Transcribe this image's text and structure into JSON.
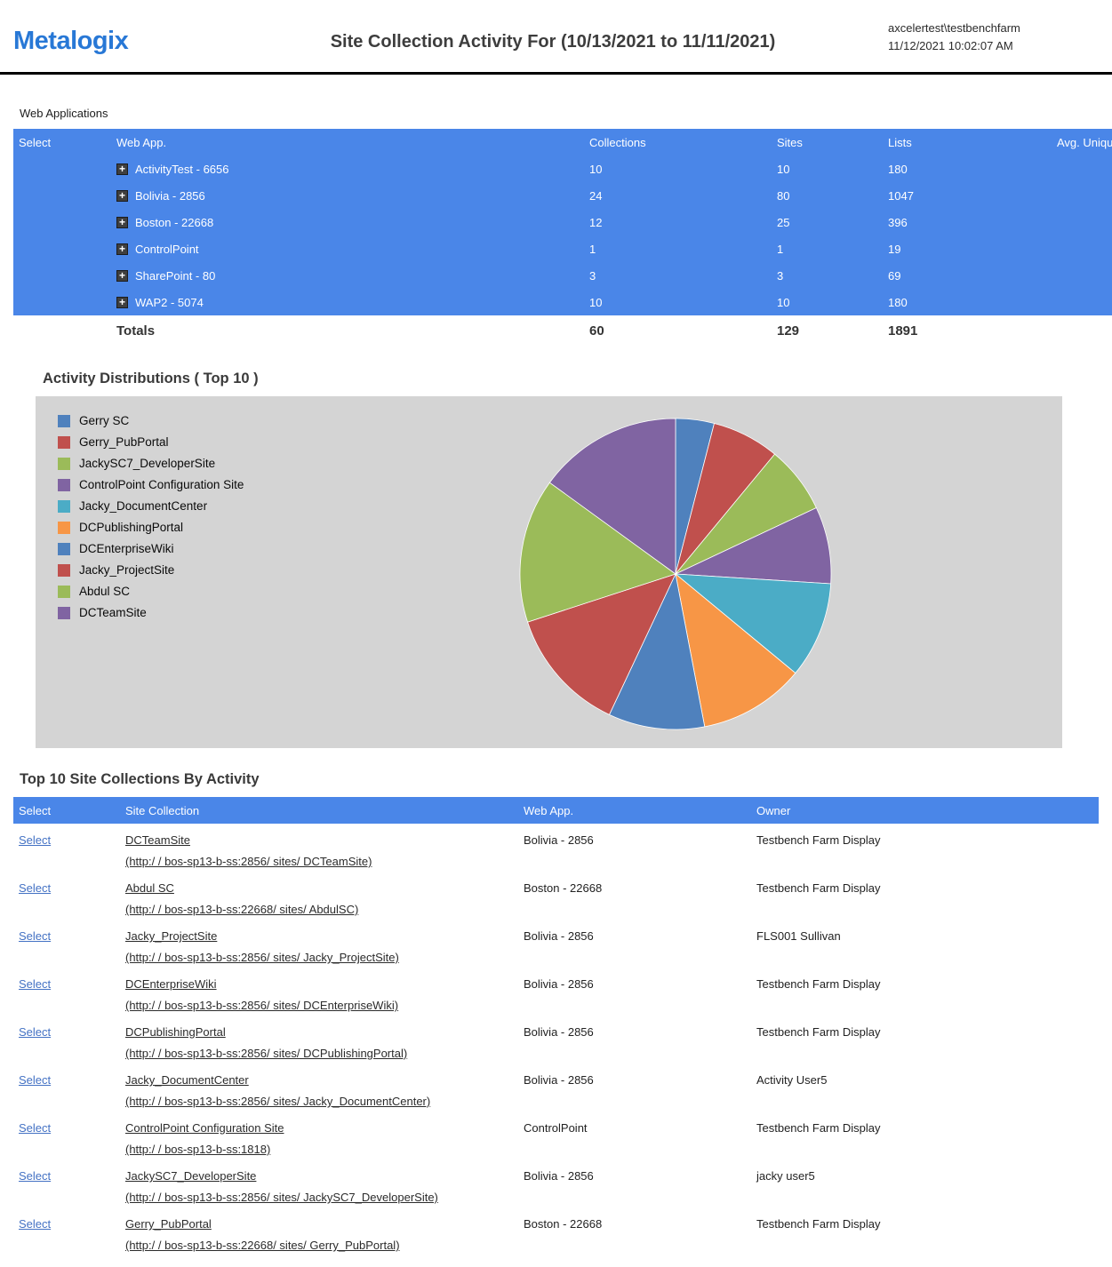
{
  "header": {
    "logo": "Metalogix",
    "title": "Site Collection Activity For (10/13/2021 to 11/11/2021)",
    "user": "axcelertest\\testbenchfarm",
    "timestamp": "11/12/2021 10:02:07 AM"
  },
  "theme": {
    "table_header_blue": "#4a86e8",
    "chart_panel_background": "#d4d4d4",
    "logo_blue": "#2878d6"
  },
  "web_applications": {
    "section_label": "Web Applications",
    "columns": [
      "Select",
      "Web App.",
      "Collections",
      "Sites",
      "Lists",
      "Avg. Unique"
    ],
    "expand_icon": "+",
    "rows": [
      {
        "name": "ActivityTest - 6656",
        "collections": "10",
        "sites": "10",
        "lists": "180"
      },
      {
        "name": "Bolivia - 2856",
        "collections": "24",
        "sites": "80",
        "lists": "1047"
      },
      {
        "name": "Boston - 22668",
        "collections": "12",
        "sites": "25",
        "lists": "396"
      },
      {
        "name": "ControlPoint",
        "collections": "1",
        "sites": "1",
        "lists": "19"
      },
      {
        "name": "SharePoint - 80",
        "collections": "3",
        "sites": "3",
        "lists": "69"
      },
      {
        "name": "WAP2 - 5074",
        "collections": "10",
        "sites": "10",
        "lists": "180"
      }
    ],
    "totals": {
      "label": "Totals",
      "collections": "60",
      "sites": "129",
      "lists": "1891"
    }
  },
  "chart_data": {
    "type": "pie",
    "title": "Activity Distributions ( Top 10 )",
    "legend_position": "left",
    "labels": [
      "Gerry SC",
      "Gerry_PubPortal",
      "JackySC7_DeveloperSite",
      "ControlPoint Configuration Site",
      "Jacky_DocumentCenter",
      "DCPublishingPortal",
      "DCEnterpriseWiki",
      "Jacky_ProjectSite",
      "Abdul SC",
      "DCTeamSite"
    ],
    "values": [
      4,
      7,
      7,
      8,
      10,
      11,
      10,
      13,
      15,
      15
    ],
    "values_note": "percent, estimated from slice angles",
    "colors": [
      "#4F81BD",
      "#C0504D",
      "#9BBB59",
      "#8064A2",
      "#4BACC6",
      "#F79646",
      "#4F81BD",
      "#C0504D",
      "#9BBB59",
      "#8064A2"
    ]
  },
  "top10": {
    "title": "Top 10 Site Collections By Activity",
    "columns": [
      "Select",
      "Site Collection",
      "Web App.",
      "Owner"
    ],
    "select_label": "Select",
    "rows": [
      {
        "site": "DCTeamSite",
        "url": "(http:/ / bos-sp13-b-ss:2856/ sites/ DCTeamSite)",
        "web_app": "Bolivia - 2856",
        "owner": "Testbench Farm Display"
      },
      {
        "site": "Abdul SC",
        "url": "(http:/ / bos-sp13-b-ss:22668/ sites/ AbdulSC)",
        "web_app": "Boston - 22668",
        "owner": "Testbench Farm Display"
      },
      {
        "site": "Jacky_ProjectSite",
        "url": "(http:/ / bos-sp13-b-ss:2856/ sites/ Jacky_ProjectSite)",
        "web_app": "Bolivia - 2856",
        "owner": "FLS001 Sullivan"
      },
      {
        "site": "DCEnterpriseWiki",
        "url": "(http:/ / bos-sp13-b-ss:2856/ sites/ DCEnterpriseWiki)",
        "web_app": "Bolivia - 2856",
        "owner": "Testbench Farm Display"
      },
      {
        "site": "DCPublishingPortal",
        "url": "(http:/ / bos-sp13-b-ss:2856/ sites/ DCPublishingPortal)",
        "web_app": "Bolivia - 2856",
        "owner": "Testbench Farm Display"
      },
      {
        "site": "Jacky_DocumentCenter",
        "url": "(http:/ / bos-sp13-b-ss:2856/ sites/ Jacky_DocumentCenter)",
        "web_app": "Bolivia - 2856",
        "owner": "Activity User5"
      },
      {
        "site": "ControlPoint Configuration Site",
        "url": "(http:/ / bos-sp13-b-ss:1818)",
        "web_app": "ControlPoint",
        "owner": "Testbench Farm Display"
      },
      {
        "site": "JackySC7_DeveloperSite",
        "url": "(http:/ / bos-sp13-b-ss:2856/ sites/ JackySC7_DeveloperSite)",
        "web_app": "Bolivia - 2856",
        "owner": "jacky user5"
      },
      {
        "site": "Gerry_PubPortal",
        "url": "(http:/ / bos-sp13-b-ss:22668/ sites/ Gerry_PubPortal)",
        "web_app": "Boston - 22668",
        "owner": "Testbench Farm Display"
      }
    ]
  }
}
